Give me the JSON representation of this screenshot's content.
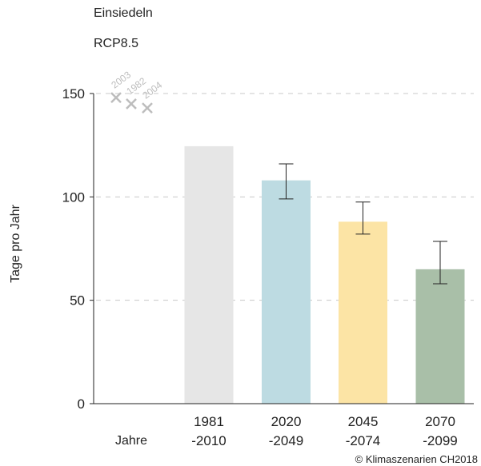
{
  "chart_data": {
    "type": "bar",
    "title": "Einsiedeln",
    "subtitle": "RCP8.5",
    "ylabel": "Tage pro Jahr",
    "xlabel": "Jahre",
    "ylim": [
      0,
      150
    ],
    "yticks": [
      0,
      50,
      100,
      150
    ],
    "grid": true,
    "categories": [
      [
        "1981",
        "-2010"
      ],
      [
        "2020",
        "-2049"
      ],
      [
        "2045",
        "-2074"
      ],
      [
        "2070",
        "-2099"
      ]
    ],
    "values": [
      124.5,
      108.0,
      88.0,
      65.0
    ],
    "error_bars": [
      null,
      [
        99.0,
        116.0
      ],
      [
        82.0,
        97.5
      ],
      [
        58.0,
        78.5
      ]
    ],
    "colors": [
      "#e6e6e6",
      "#bddbe2",
      "#fce4a5",
      "#a9bfa8"
    ],
    "extreme_years": [
      {
        "label": "2003",
        "value": 148
      },
      {
        "label": "1982",
        "value": 145
      },
      {
        "label": "2004",
        "value": 143
      }
    ],
    "copyright": "© Klimaszenarien CH2018"
  }
}
